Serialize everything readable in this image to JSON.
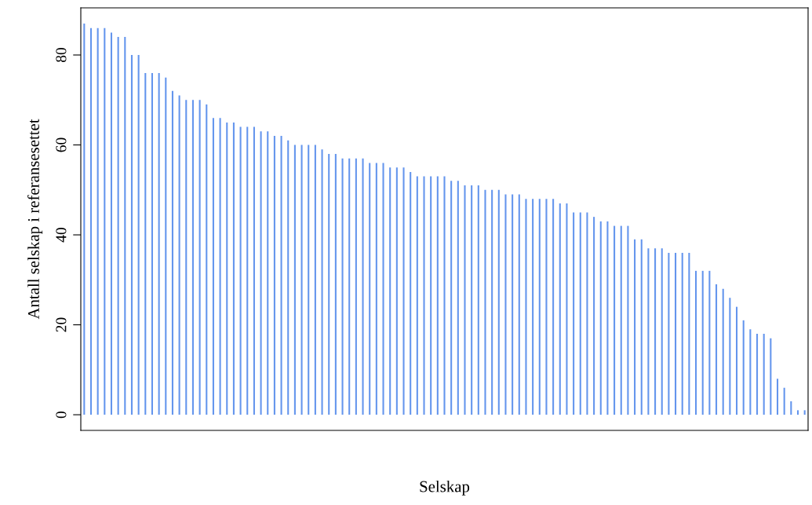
{
  "chart_data": {
    "type": "bar",
    "xlabel": "Selskap",
    "ylabel": "Antall selskap i referansesettet",
    "categories": [
      null,
      null,
      null,
      null,
      null,
      null,
      null,
      null,
      null,
      null,
      null,
      null,
      null,
      null,
      null,
      null,
      null,
      null,
      null,
      null,
      null,
      null,
      null,
      null,
      null,
      null,
      null,
      null,
      null,
      null,
      null,
      null,
      null,
      null,
      null,
      null,
      null,
      null,
      null,
      null,
      null,
      null,
      null,
      null,
      null,
      null,
      null,
      null,
      null,
      null,
      null,
      null,
      null,
      null,
      null,
      null,
      null,
      null,
      null,
      null,
      null,
      null,
      null,
      null,
      null,
      null,
      null,
      null,
      null,
      null,
      null,
      null,
      null,
      null,
      null,
      null,
      null,
      null,
      null,
      null,
      null,
      null,
      null,
      null,
      null,
      null,
      null,
      null,
      null,
      null,
      null,
      null,
      null,
      null,
      null,
      null,
      null,
      null,
      null,
      null,
      null,
      null,
      null,
      null,
      null,
      null,
      null
    ],
    "values": [
      87,
      86,
      86,
      86,
      85,
      84,
      84,
      80,
      80,
      76,
      76,
      76,
      75,
      72,
      71,
      70,
      70,
      70,
      69,
      66,
      66,
      65,
      65,
      64,
      64,
      64,
      63,
      63,
      62,
      62,
      61,
      60,
      60,
      60,
      60,
      59,
      58,
      58,
      57,
      57,
      57,
      57,
      56,
      56,
      56,
      55,
      55,
      55,
      54,
      53,
      53,
      53,
      53,
      53,
      52,
      52,
      51,
      51,
      51,
      50,
      50,
      50,
      49,
      49,
      49,
      48,
      48,
      48,
      48,
      48,
      47,
      47,
      45,
      45,
      45,
      44,
      43,
      43,
      42,
      42,
      42,
      39,
      39,
      37,
      37,
      37,
      36,
      36,
      36,
      36,
      32,
      32,
      32,
      29,
      28,
      26,
      24,
      21,
      19,
      18,
      18,
      17,
      8,
      6,
      3,
      1,
      1
    ],
    "color": "#6495ed",
    "ylim": [
      -3.48,
      90.48
    ],
    "yticks": [
      0,
      20,
      40,
      60,
      80
    ],
    "tick_labels": "y",
    "grid": false,
    "legend": false
  }
}
